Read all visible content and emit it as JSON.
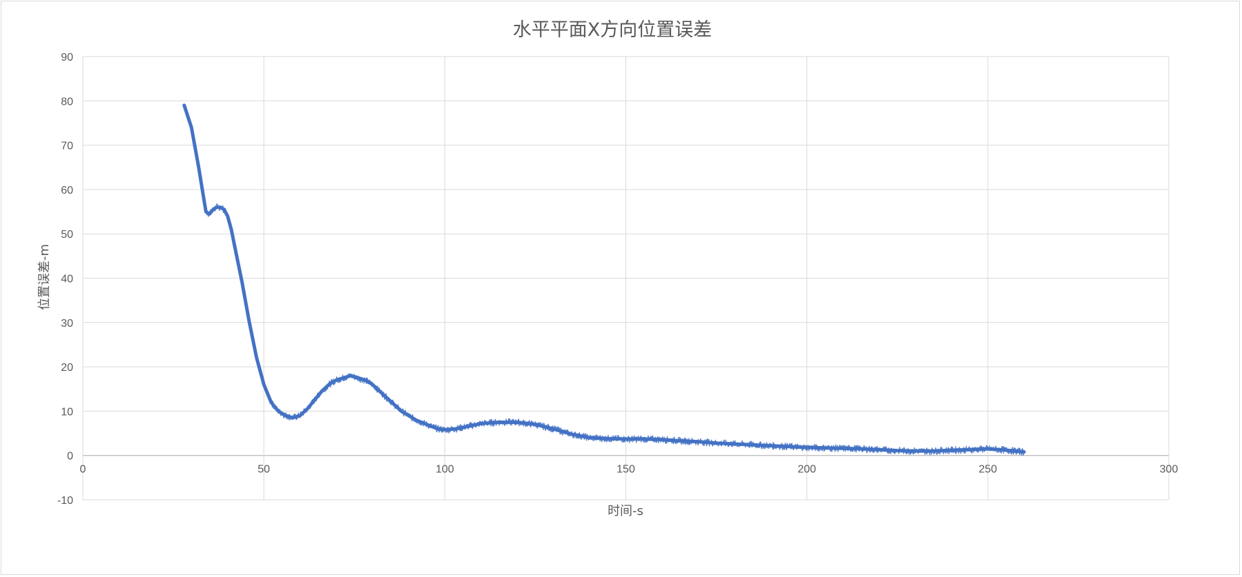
{
  "chart_data": {
    "type": "line",
    "title": "水平平面X方向位置误差",
    "xlabel": "时间-s",
    "ylabel": "位置误差-m",
    "xlim": [
      0,
      300
    ],
    "ylim": [
      -10,
      90
    ],
    "x_ticks": [
      0,
      50,
      100,
      150,
      200,
      250,
      300
    ],
    "y_ticks": [
      -10,
      0,
      10,
      20,
      30,
      40,
      50,
      60,
      70,
      80,
      90
    ],
    "grid": true,
    "legend": "none",
    "line_color": "#4472C4",
    "series": [
      {
        "x": [
          28,
          30,
          32,
          33,
          34,
          35,
          36,
          37,
          38,
          39,
          40,
          41,
          42,
          44,
          46,
          48,
          50,
          52,
          54,
          56,
          58,
          60,
          62,
          64,
          66,
          68,
          70,
          72,
          74,
          76,
          78,
          80,
          82,
          84,
          86,
          88,
          90,
          92,
          95,
          98,
          100,
          103,
          106,
          110,
          115,
          120,
          125,
          130,
          135,
          140,
          145,
          150,
          155,
          160,
          165,
          170,
          175,
          180,
          185,
          190,
          195,
          200,
          205,
          210,
          215,
          220,
          225,
          230,
          235,
          240,
          245,
          250,
          255,
          260
        ],
        "y": [
          79,
          74,
          65,
          60,
          55,
          54.5,
          55.5,
          56,
          56,
          55.5,
          54,
          51,
          47,
          39,
          30,
          22,
          16,
          12,
          10,
          9,
          8.5,
          9,
          10.5,
          12.5,
          14.5,
          16,
          17,
          17.5,
          18,
          17.5,
          17,
          16,
          14.5,
          13,
          11.5,
          10,
          9,
          8,
          7,
          6,
          5.8,
          6,
          6.5,
          7.2,
          7.5,
          7.5,
          7,
          6,
          4.8,
          4,
          3.8,
          3.7,
          3.7,
          3.6,
          3.3,
          3.1,
          2.8,
          2.6,
          2.4,
          2.2,
          2.0,
          1.8,
          1.7,
          1.6,
          1.5,
          1.3,
          1.1,
          1.0,
          1.0,
          1.2,
          1.3,
          1.5,
          1.2,
          0.8
        ]
      }
    ]
  }
}
